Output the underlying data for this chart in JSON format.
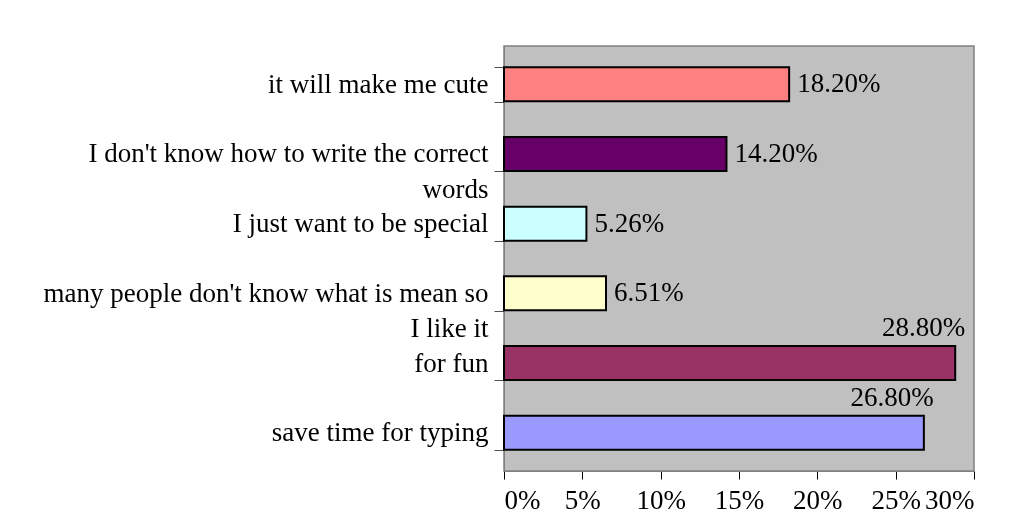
{
  "chart_data": {
    "type": "bar",
    "orientation": "horizontal",
    "categories": [
      "it will make me cute",
      "I don't know how to write the correct words",
      "I just want to be special",
      "many people don't know what is mean so I like it",
      "for fun",
      "save time for typing"
    ],
    "values": [
      18.2,
      14.2,
      5.26,
      6.51,
      28.8,
      26.8
    ],
    "colors": [
      "#ff8080",
      "#660066",
      "#ccffff",
      "#ffffcc",
      "#993366",
      "#9999ff"
    ],
    "value_labels": [
      "18.20%",
      "14.20%",
      "5.26%",
      "6.51%",
      "28.80%",
      "26.80%"
    ],
    "xlim": [
      0,
      30
    ],
    "xticks": [
      {
        "value": 0,
        "label": "0%"
      },
      {
        "value": 5,
        "label": "5%"
      },
      {
        "value": 10,
        "label": "10%"
      },
      {
        "value": 15,
        "label": "15%"
      },
      {
        "value": 20,
        "label": "20%"
      },
      {
        "value": 25,
        "label": "25%"
      },
      {
        "value": 30,
        "label": "30%"
      }
    ],
    "grid": false
  }
}
